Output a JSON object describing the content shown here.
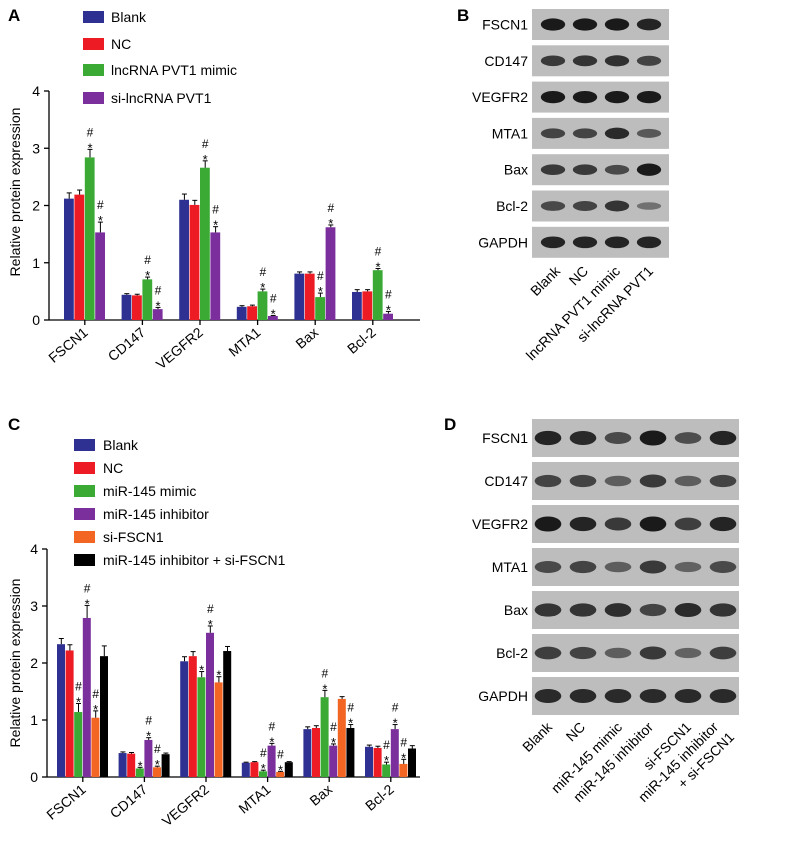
{
  "panels": {
    "A": {
      "letter": "A",
      "legend": [
        "Blank",
        "NC",
        "lncRNA PVT1 mimic",
        "si-lncRNA PVT1"
      ],
      "colors": [
        "#2e3191",
        "#ed1c24",
        "#3aaa35",
        "#7b2f9d"
      ]
    },
    "B": {
      "letter": "B",
      "bands": [
        "FSCN1",
        "CD147",
        "VEGFR2",
        "MTA1",
        "Bax",
        "Bcl-2",
        "GAPDH"
      ],
      "lanes": [
        "Blank",
        "NC",
        "lncRNA PVT1 mimic",
        "si-lncRNA PVT1"
      ]
    },
    "C": {
      "letter": "C",
      "legend": [
        "Blank",
        "NC",
        "miR-145 mimic",
        "miR-145 inhibitor",
        "si-FSCN1",
        "miR-145 inhibitor + si-FSCN1"
      ],
      "colors": [
        "#2e3191",
        "#ed1c24",
        "#3aaa35",
        "#7b2f9d",
        "#f26522",
        "#000000"
      ]
    },
    "D": {
      "letter": "D",
      "bands": [
        "FSCN1",
        "CD147",
        "VEGFR2",
        "MTA1",
        "Bax",
        "Bcl-2",
        "GAPDH"
      ],
      "lanes": [
        "Blank",
        "NC",
        "miR-145 mimic",
        "miR-145 inhibitor",
        "si-FSCN1",
        "miR-145 inhibitor",
        "+ si-FSCN1"
      ]
    }
  },
  "chart_data": [
    {
      "type": "bar",
      "panel": "A",
      "ylabel": "Relative protein expression",
      "ylim": [
        0,
        4
      ],
      "yticks": [
        "0",
        "1",
        "2",
        "3",
        "4"
      ],
      "categories": [
        "FSCN1",
        "CD147",
        "VEGFR2",
        "MTA1",
        "Bax",
        "Bcl-2"
      ],
      "series": [
        {
          "name": "Blank",
          "values": [
            2.12,
            0.44,
            2.1,
            0.23,
            0.81,
            0.49
          ],
          "errors": [
            0.1,
            0.02,
            0.1,
            0.02,
            0.03,
            0.04
          ],
          "marks": [
            "",
            "",
            "",
            "",
            "",
            ""
          ]
        },
        {
          "name": "NC",
          "values": [
            2.19,
            0.43,
            2.01,
            0.24,
            0.81,
            0.5
          ],
          "errors": [
            0.08,
            0.02,
            0.08,
            0.02,
            0.03,
            0.03
          ],
          "marks": [
            "",
            "",
            "",
            "",
            "",
            ""
          ]
        },
        {
          "name": "lncRNA PVT1 mimic",
          "values": [
            2.84,
            0.71,
            2.66,
            0.5,
            0.4,
            0.87
          ],
          "errors": [
            0.14,
            0.04,
            0.12,
            0.04,
            0.07,
            0.03
          ],
          "marks": [
            "*#",
            "*#",
            "*#",
            "*#",
            "*#",
            "*#"
          ]
        },
        {
          "name": "si-lncRNA PVT1",
          "values": [
            1.53,
            0.19,
            1.53,
            0.07,
            1.62,
            0.11
          ],
          "errors": [
            0.18,
            0.03,
            0.1,
            0.01,
            0.04,
            0.04
          ],
          "marks": [
            "*#",
            "*#",
            "*#",
            "*#",
            "*#",
            "*#"
          ]
        }
      ]
    },
    {
      "type": "bar",
      "panel": "C",
      "ylabel": "Relative protein expression",
      "ylim": [
        0,
        4
      ],
      "yticks": [
        "0",
        "1",
        "2",
        "3",
        "4"
      ],
      "categories": [
        "FSCN1",
        "CD147",
        "VEGFR2",
        "MTA1",
        "Bax",
        "Bcl-2"
      ],
      "series": [
        {
          "name": "Blank",
          "values": [
            2.33,
            0.42,
            2.03,
            0.25,
            0.84,
            0.53
          ],
          "errors": [
            0.1,
            0.02,
            0.08,
            0.01,
            0.04,
            0.03
          ],
          "marks": [
            "",
            "",
            "",
            "",
            "",
            ""
          ]
        },
        {
          "name": "NC",
          "values": [
            2.22,
            0.41,
            2.12,
            0.26,
            0.86,
            0.51
          ],
          "errors": [
            0.1,
            0.02,
            0.08,
            0.01,
            0.04,
            0.03
          ],
          "marks": [
            "",
            "",
            "",
            "",
            "",
            ""
          ]
        },
        {
          "name": "miR-145 mimic",
          "values": [
            1.14,
            0.15,
            1.75,
            0.1,
            1.4,
            0.22
          ],
          "errors": [
            0.15,
            0.02,
            0.1,
            0.02,
            0.12,
            0.04
          ],
          "marks": [
            "*#",
            "*",
            "*",
            "*#",
            "*#",
            "*#"
          ]
        },
        {
          "name": "miR-145 inhibitor",
          "values": [
            2.79,
            0.65,
            2.53,
            0.55,
            0.55,
            0.84
          ],
          "errors": [
            0.22,
            0.04,
            0.12,
            0.04,
            0.03,
            0.08
          ],
          "marks": [
            "*#",
            "*#",
            "*#",
            "*#",
            "*#",
            "*#"
          ]
        },
        {
          "name": "si-FSCN1",
          "values": [
            1.04,
            0.17,
            1.66,
            0.09,
            1.37,
            0.23
          ],
          "errors": [
            0.12,
            0.02,
            0.1,
            0.01,
            0.04,
            0.08
          ],
          "marks": [
            "*#",
            "*#",
            "*",
            "*#",
            "",
            "*#"
          ]
        },
        {
          "name": "miR-145 inhibitor + si-FSCN1",
          "values": [
            2.12,
            0.4,
            2.21,
            0.26,
            0.86,
            0.5
          ],
          "errors": [
            0.18,
            0.02,
            0.08,
            0.01,
            0.06,
            0.05
          ],
          "marks": [
            "",
            "",
            "",
            "",
            "*#",
            ""
          ]
        }
      ]
    }
  ]
}
